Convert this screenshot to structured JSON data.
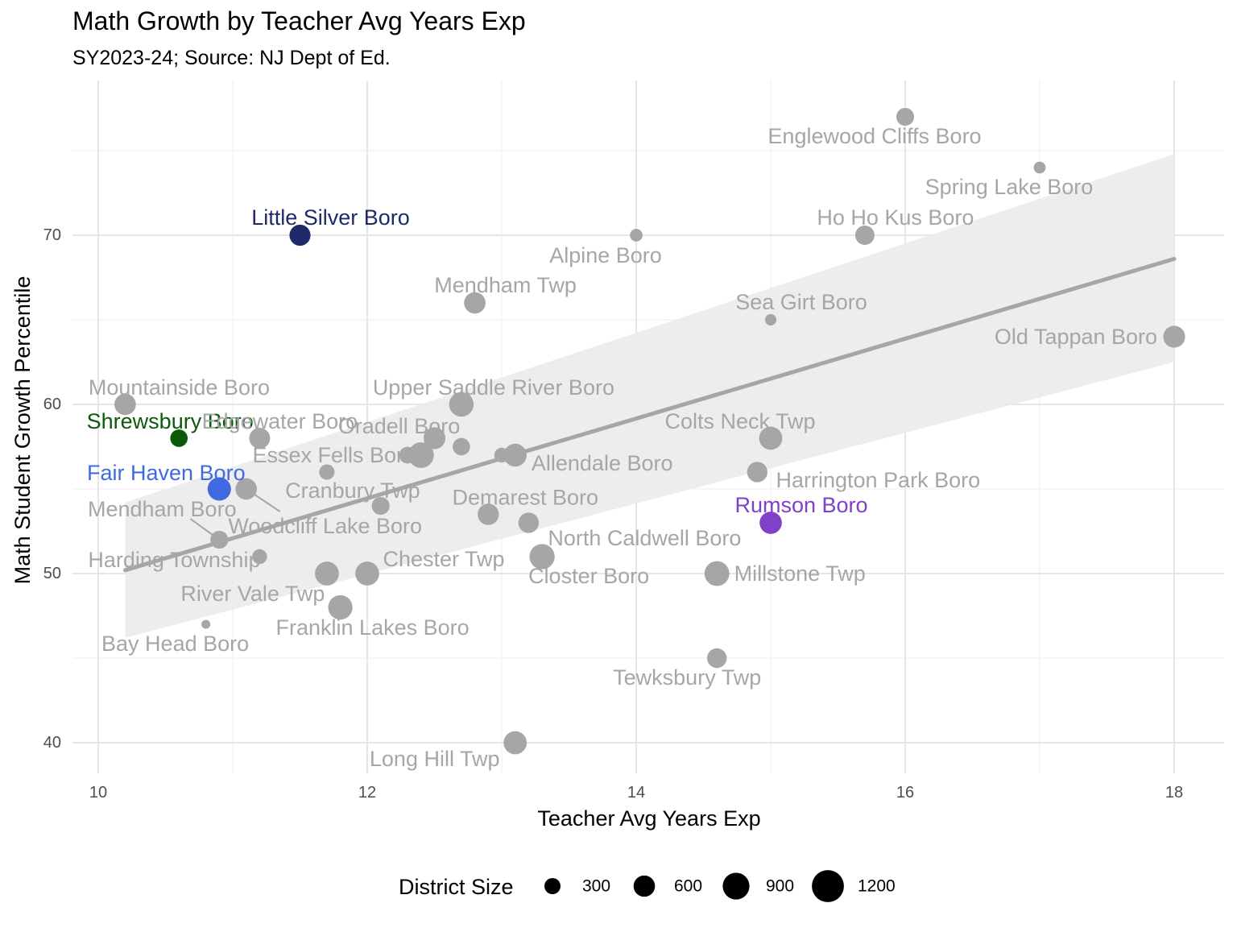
{
  "chart_data": {
    "type": "scatter",
    "title": "Math Growth by Teacher Avg Years Exp",
    "subtitle": "SY2023-24; Source: NJ Dept of Ed.",
    "xlabel": "Teacher Avg Years Exp",
    "ylabel": "Math Student Growth Percentile",
    "xlim": [
      9.8,
      18.4
    ],
    "ylim": [
      38.4,
      78.2
    ],
    "x_ticks": [
      10,
      12,
      14,
      16,
      18
    ],
    "y_ticks": [
      40,
      50,
      60,
      70
    ],
    "grid": true,
    "trend": {
      "x": [
        10.2,
        18.0
      ],
      "y": [
        50.2,
        68.6
      ],
      "ci_lower": [
        46.2,
        62.5
      ],
      "ci_upper": [
        54.2,
        74.8
      ],
      "color": "#a6a6a6"
    },
    "size_legend": {
      "title": "District Size",
      "values": [
        300,
        600,
        900,
        1200
      ],
      "labels": [
        "300",
        "600",
        "900",
        "1200"
      ],
      "placement": "bottom"
    },
    "colors": {
      "default": "#a6a6a6",
      "Little Silver Boro": "#1f2a6b",
      "Shrewsbury Boro": "#0b5a0b",
      "Fair Haven Boro": "#4169e1",
      "Rumson Boro": "#8040c8"
    },
    "points": [
      {
        "name": "Englewood Cliffs Boro",
        "x": 16.0,
        "y": 77.0,
        "size": 500,
        "color": "#a6a6a6"
      },
      {
        "name": "Spring Lake Boro",
        "x": 17.0,
        "y": 74.0,
        "size": 150,
        "color": "#a6a6a6"
      },
      {
        "name": "Ho Ho Kus Boro",
        "x": 15.7,
        "y": 70.0,
        "size": 620,
        "color": "#a6a6a6"
      },
      {
        "name": "Alpine Boro",
        "x": 14.0,
        "y": 70.0,
        "size": 180,
        "color": "#a6a6a6"
      },
      {
        "name": "Little Silver Boro",
        "x": 11.5,
        "y": 70.0,
        "size": 780,
        "color": "#1f2a6b"
      },
      {
        "name": "Mendham Twp",
        "x": 12.8,
        "y": 66.0,
        "size": 820,
        "color": "#a6a6a6"
      },
      {
        "name": "Sea Girt Boro",
        "x": 15.0,
        "y": 65.0,
        "size": 130,
        "color": "#a6a6a6"
      },
      {
        "name": "Old Tappan Boro",
        "x": 18.0,
        "y": 64.0,
        "size": 860,
        "color": "#a6a6a6"
      },
      {
        "name": "Mountainside Boro",
        "x": 10.2,
        "y": 60.0,
        "size": 820,
        "color": "#a6a6a6"
      },
      {
        "name": "Upper Saddle River Boro",
        "x": 12.7,
        "y": 60.0,
        "size": 1150,
        "color": "#a6a6a6"
      },
      {
        "name": "Shrewsbury Boro",
        "x": 10.6,
        "y": 58.0,
        "size": 470,
        "color": "#0b5a0b"
      },
      {
        "name": "Edgewater Boro",
        "x": 11.2,
        "y": 58.0,
        "size": 760,
        "color": "#a6a6a6"
      },
      {
        "name": "Oradell Boro",
        "x": 12.5,
        "y": 58.0,
        "size": 860,
        "color": "#a6a6a6"
      },
      {
        "name": "Colts Neck Twp",
        "x": 15.0,
        "y": 58.0,
        "size": 1000,
        "color": "#a6a6a6"
      },
      {
        "name": "Essex Fells Boro",
        "x": 12.4,
        "y": 57.0,
        "size": 1280,
        "color": "#a6a6a6"
      },
      {
        "name": "Allendale Boro",
        "x": 13.1,
        "y": 57.0,
        "size": 970,
        "color": "#a6a6a6"
      },
      {
        "name": "",
        "x": 12.7,
        "y": 57.5,
        "size": 470,
        "color": "#a6a6a6"
      },
      {
        "name": "",
        "x": 12.3,
        "y": 57.0,
        "size": 420,
        "color": "#a6a6a6"
      },
      {
        "name": "",
        "x": 13.0,
        "y": 57.0,
        "size": 300,
        "color": "#a6a6a6"
      },
      {
        "name": "Harrington Park Boro",
        "x": 14.9,
        "y": 56.0,
        "size": 720,
        "color": "#a6a6a6"
      },
      {
        "name": "Cranbury Twp",
        "x": 11.7,
        "y": 56.0,
        "size": 330,
        "color": "#a6a6a6"
      },
      {
        "name": "Fair Haven Boro",
        "x": 10.9,
        "y": 55.0,
        "size": 1020,
        "color": "#4169e1"
      },
      {
        "name": "Woodcliff Lake Boro",
        "x": 11.1,
        "y": 55.0,
        "size": 820,
        "color": "#a6a6a6"
      },
      {
        "name": "",
        "x": 12.1,
        "y": 54.0,
        "size": 500,
        "color": "#a6a6a6"
      },
      {
        "name": "Demarest Boro",
        "x": 12.9,
        "y": 53.5,
        "size": 800,
        "color": "#a6a6a6"
      },
      {
        "name": "North Caldwell Boro",
        "x": 13.2,
        "y": 53.0,
        "size": 720,
        "color": "#a6a6a6"
      },
      {
        "name": "Rumson Boro",
        "x": 15.0,
        "y": 53.0,
        "size": 900,
        "color": "#8040c8"
      },
      {
        "name": "Mendham Boro",
        "x": 10.9,
        "y": 52.0,
        "size": 500,
        "color": "#a6a6a6"
      },
      {
        "name": "Closter Boro",
        "x": 13.3,
        "y": 51.0,
        "size": 1230,
        "color": "#a6a6a6"
      },
      {
        "name": "Harding Township",
        "x": 11.2,
        "y": 51.0,
        "size": 300,
        "color": "#a6a6a6"
      },
      {
        "name": "River Vale Twp",
        "x": 11.7,
        "y": 50.0,
        "size": 1080,
        "color": "#a6a6a6"
      },
      {
        "name": "Chester Twp",
        "x": 12.0,
        "y": 50.0,
        "size": 1080,
        "color": "#a6a6a6"
      },
      {
        "name": "Millstone Twp",
        "x": 14.6,
        "y": 50.0,
        "size": 1180,
        "color": "#a6a6a6"
      },
      {
        "name": "Franklin Lakes Boro",
        "x": 11.8,
        "y": 48.0,
        "size": 1130,
        "color": "#a6a6a6"
      },
      {
        "name": "Bay Head Boro",
        "x": 10.8,
        "y": 47.0,
        "size": 50,
        "color": "#a6a6a6"
      },
      {
        "name": "Tewksbury Twp",
        "x": 14.6,
        "y": 45.0,
        "size": 650,
        "color": "#a6a6a6"
      },
      {
        "name": "Long Hill Twp",
        "x": 13.1,
        "y": 40.0,
        "size": 1000,
        "color": "#a6a6a6"
      }
    ]
  }
}
